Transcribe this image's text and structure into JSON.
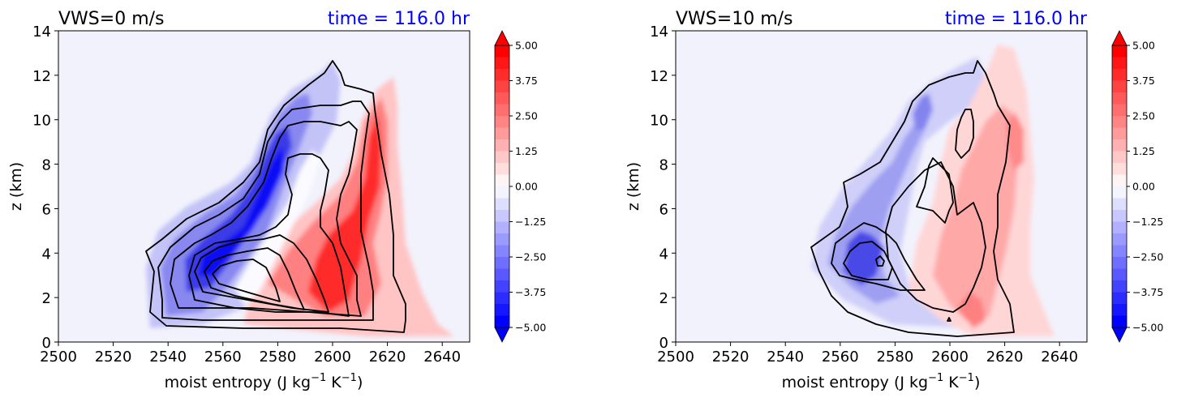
{
  "chart_data": [
    {
      "type": "contour",
      "title_left": "VWS=0 m/s",
      "title_right": "time = 116.0 hr",
      "title_right_color": "#0000ff",
      "xlabel": "moist entropy (J kg",
      "xlabel_unit_exp1": "−1",
      "xlabel_mid": " K",
      "xlabel_unit_exp2": "−1",
      "xlabel_close": ")",
      "ylabel": "z (km)",
      "xlim": [
        2500,
        2650
      ],
      "ylim": [
        0,
        14
      ],
      "x_ticks": [
        "2500",
        "2520",
        "2540",
        "2560",
        "2580",
        "2600",
        "2620",
        "2640"
      ],
      "y_ticks": [
        "0",
        "2",
        "4",
        "6",
        "8",
        "10",
        "12",
        "14"
      ],
      "colorbar": {
        "ticks": [
          "−5.00",
          "−3.75",
          "−2.50",
          "−1.25",
          "0.00",
          "1.25",
          "2.50",
          "3.75",
          "5.00"
        ],
        "range": [
          -5,
          5
        ],
        "extend": "both",
        "colormap": "bwr"
      },
      "background_color": "#f2f2fc"
    },
    {
      "type": "contour",
      "title_left": "VWS=10 m/s",
      "title_right": "time = 116.0 hr",
      "title_right_color": "#0000ff",
      "xlabel": "moist entropy (J kg",
      "xlabel_unit_exp1": "−1",
      "xlabel_mid": " K",
      "xlabel_unit_exp2": "−1",
      "xlabel_close": ")",
      "ylabel": "z (km)",
      "xlim": [
        2500,
        2650
      ],
      "ylim": [
        0,
        14
      ],
      "x_ticks": [
        "2500",
        "2520",
        "2540",
        "2560",
        "2580",
        "2600",
        "2620",
        "2640"
      ],
      "y_ticks": [
        "0",
        "2",
        "4",
        "6",
        "8",
        "10",
        "12",
        "14"
      ],
      "colorbar": {
        "ticks": [
          "−5.00",
          "−3.75",
          "−2.50",
          "−1.25",
          "0.00",
          "1.25",
          "2.50",
          "3.75",
          "5.00"
        ],
        "range": [
          -5,
          5
        ],
        "extend": "both",
        "colormap": "bwr"
      },
      "background_color": "#f2f2fc"
    }
  ]
}
